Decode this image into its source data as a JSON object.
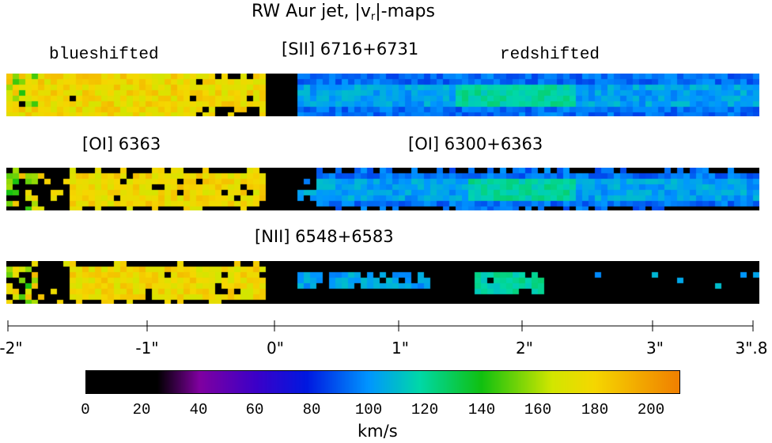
{
  "title_main": "RW Aur jet, |v",
  "title_sub": "r",
  "title_end": "|-maps",
  "labels": {
    "blueshifted": "blueshifted",
    "redshifted": "redshifted",
    "sii": "[SII] 6716+6731",
    "oi_6363": "[OI] 6363",
    "oi_6300": "[OI] 6300+6363",
    "nii": "[NII] 6548+6583"
  },
  "axis_ticks": [
    "-2\"",
    "-1\"",
    "0\"",
    "1\"",
    "2\"",
    "3\"",
    "3\".8"
  ],
  "colorbar": {
    "ticks": [
      "0",
      "20",
      "40",
      "60",
      "80",
      "100",
      "120",
      "140",
      "160",
      "180",
      "200"
    ],
    "unit": "km/s",
    "min": 0,
    "max": 210
  },
  "chart_data": {
    "type": "heatmap",
    "title": "RW Aur jet, |vr|-maps",
    "x_axis_ticks": [
      "-2\"",
      "-1\"",
      "0\"",
      "1\"",
      "2\"",
      "3\"",
      "3\".8"
    ],
    "color_scale": {
      "min": 0,
      "max": 210,
      "unit": "km/s",
      "stops": [
        "#000000",
        "#8000a0",
        "#0018e0",
        "#0090ff",
        "#00d8a8",
        "#10c010",
        "#f0e000",
        "#f08000"
      ]
    },
    "panels": [
      {
        "line": "[SII] 6716+6731",
        "blue_lobe_kms": 175,
        "red_lobe_kms": 95
      },
      {
        "line": "[OI] 6363 / [OI] 6300+6363",
        "blue_lobe_kms": 185,
        "red_lobe_kms": 95
      },
      {
        "line": "[NII] 6548+6583",
        "blue_lobe_kms": 185,
        "red_lobe_kms": 100
      }
    ]
  }
}
